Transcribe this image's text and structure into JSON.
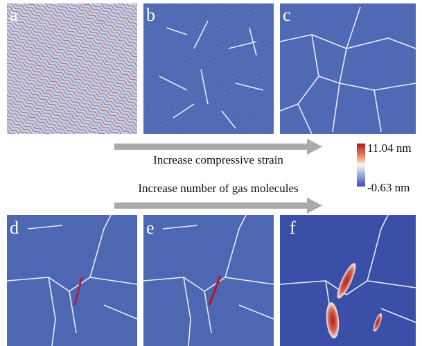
{
  "panels": [
    {
      "label": "a"
    },
    {
      "label": "b"
    },
    {
      "label": "c"
    },
    {
      "label": "d"
    },
    {
      "label": "e"
    },
    {
      "label": "f"
    }
  ],
  "arrows": [
    {
      "text": "Increase compressive strain"
    },
    {
      "text": "Increase number of gas molecules"
    }
  ],
  "colorbar": {
    "max_label": "11.04 nm",
    "min_label": "-0.63 nm"
  }
}
